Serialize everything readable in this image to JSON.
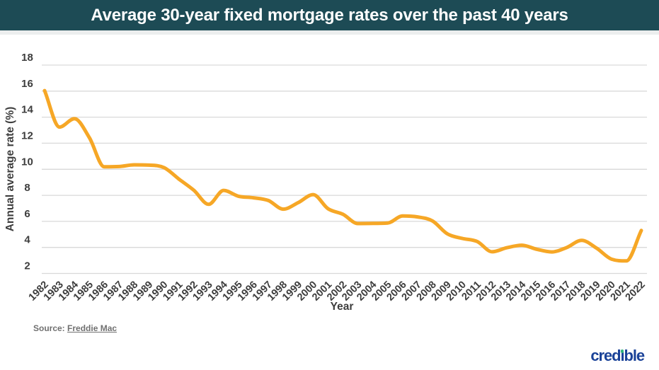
{
  "header": {
    "title": "Average 30-year fixed mortgage rates over the past 40 years"
  },
  "chart_data": {
    "type": "line",
    "title": "Average 30-year fixed mortgage rates over the past 40 years",
    "xlabel": "Year",
    "ylabel": "Annual average rate (%)",
    "x": [
      1982,
      1983,
      1984,
      1985,
      1986,
      1987,
      1988,
      1989,
      1990,
      1991,
      1992,
      1993,
      1994,
      1995,
      1996,
      1997,
      1998,
      1999,
      2000,
      2001,
      2002,
      2003,
      2004,
      2005,
      2006,
      2007,
      2008,
      2009,
      2010,
      2011,
      2012,
      2013,
      2014,
      2015,
      2016,
      2017,
      2018,
      2019,
      2020,
      2021,
      2022
    ],
    "values": [
      16.04,
      13.24,
      13.88,
      12.43,
      10.19,
      10.21,
      10.34,
      10.32,
      10.13,
      9.25,
      8.39,
      7.31,
      8.38,
      7.93,
      7.81,
      7.6,
      6.94,
      7.44,
      8.05,
      6.97,
      6.54,
      5.83,
      5.84,
      5.87,
      6.41,
      6.34,
      6.03,
      5.04,
      4.69,
      4.45,
      3.66,
      3.98,
      4.17,
      3.85,
      3.65,
      3.99,
      4.54,
      3.94,
      3.1,
      2.96,
      5.3
    ],
    "yticks": [
      2,
      4,
      6,
      8,
      10,
      12,
      14,
      16,
      18
    ],
    "ylim": [
      2,
      18
    ],
    "grid": true,
    "legend": false,
    "line_color": "#f6a726",
    "gridline_color": "#d9d9d9",
    "tick_color": "#3d3d3d"
  },
  "footer": {
    "source_prefix": "Source:",
    "source_link_text": "Freddie Mac",
    "logo_text": "credible"
  },
  "colors": {
    "header_bg": "#1d4b55",
    "header_text": "#ffffff",
    "under_strip": "#eceeee",
    "logo_blue": "#1a4298",
    "logo_dot_green": "#2fb57c",
    "source_gray": "#707070"
  }
}
